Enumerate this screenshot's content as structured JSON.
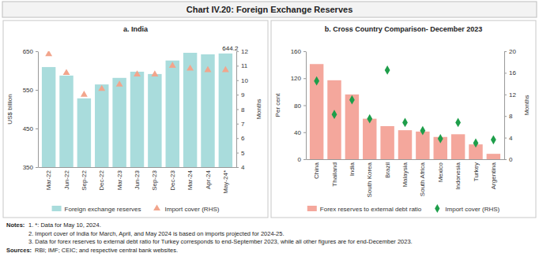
{
  "title": "Chart IV.20: Foreign Exchange Reserves",
  "chart_data": [
    {
      "type": "bar",
      "title": "a. India",
      "categories": [
        "Mar-22",
        "Jun-22",
        "Sep-22",
        "Dec-22",
        "Mar-23",
        "Jun-23",
        "Sep-23",
        "Dec-23",
        "Mar-24",
        "Apr-24",
        "May-24*"
      ],
      "series": [
        {
          "name": "Foreign exchange reserves",
          "type": "bar",
          "color": "#a9dcdc",
          "values": [
            609,
            587,
            528,
            564,
            581,
            597,
            591,
            626,
            646,
            642,
            644.2
          ],
          "value_labels": [
            null,
            null,
            null,
            null,
            null,
            null,
            null,
            null,
            null,
            null,
            "644.2"
          ]
        },
        {
          "name": "Import cover (RHS)",
          "type": "scatter",
          "marker": "triangle",
          "color": "#f2a58c",
          "axis": "y2",
          "values": [
            11.8,
            10.5,
            9.0,
            9.4,
            9.7,
            10.4,
            10.4,
            11.0,
            10.8,
            10.7,
            10.7
          ]
        }
      ],
      "ylabel": "US$ billion",
      "ylim": [
        350,
        650
      ],
      "yticks": [
        350,
        450,
        550,
        650
      ],
      "y2label": "Months",
      "y2lim": [
        4,
        12
      ],
      "y2ticks": [
        4,
        5,
        6,
        7,
        8,
        9,
        10,
        11,
        12
      ],
      "grid": false,
      "legend": "bottom"
    },
    {
      "type": "bar",
      "title": "b. Cross Country Comparison- December 2023",
      "categories": [
        "China",
        "Thailand",
        "India",
        "South Korea",
        "Brazil",
        "Malaysia",
        "South Africa",
        "Mexico",
        "Indonesia",
        "Turkey",
        "Argentina"
      ],
      "series": [
        {
          "name": "Forex reserves to external debt ratio",
          "type": "bar",
          "color": "#f4a79c",
          "values": [
            141,
            117,
            96,
            60,
            49,
            43,
            41,
            33,
            37,
            22,
            8
          ]
        },
        {
          "name": "Import cover (RHS)",
          "type": "scatter",
          "marker": "diamond",
          "color": "#1e9e4a",
          "axis": "y2",
          "values": [
            14.5,
            8.3,
            11.0,
            7.5,
            16.5,
            6.8,
            5.3,
            3.8,
            6.8,
            3.0,
            3.6
          ]
        }
      ],
      "ylabel": "Per cent",
      "ylim": [
        0,
        160
      ],
      "yticks": [
        0,
        40,
        80,
        120,
        160
      ],
      "y2label": "Months",
      "y2lim": [
        0,
        20
      ],
      "y2ticks": [
        0,
        4,
        8,
        12,
        16,
        20
      ],
      "grid": false,
      "legend": "bottom"
    }
  ],
  "notes_label": "Notes:",
  "notes": [
    "1. *: Data for May 10, 2024.",
    "2. Import cover of India for March, April, and May 2024 is based on imports projected for 2024-25.",
    "3. Data for forex reserves to external debt ratio for Turkey corresponds to end-September 2023, while all other figures are for end-December 2023."
  ],
  "sources_label": "Sources:",
  "sources": "RBI; IMF; CEIC; and respective central bank websites."
}
